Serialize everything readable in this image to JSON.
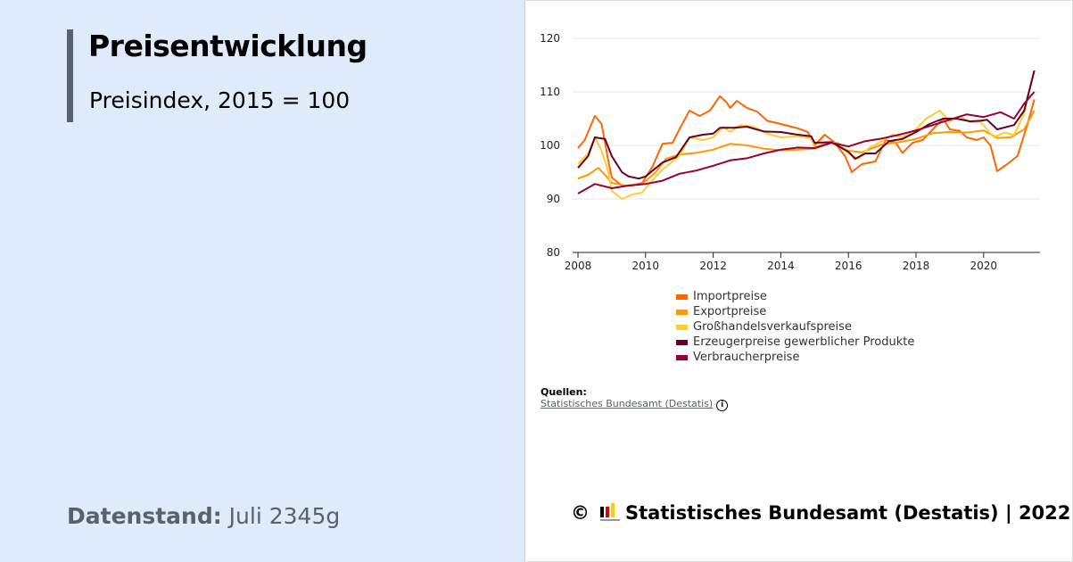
{
  "header": {
    "title": "Preisentwicklung",
    "subtitle": "Preisindex, 2015 = 100"
  },
  "datenstand": {
    "label": "Datenstand:",
    "value": "Juli 2345g"
  },
  "sources": {
    "label": "Quellen:",
    "link": "Statistisches Bundesamt (Destatis)",
    "info_icon": "info-icon"
  },
  "footer": {
    "copyright": "©",
    "text": "Statistisches Bundesamt (Destatis) | 2022",
    "logo_colors": [
      "#000000",
      "#dd0000",
      "#ffcc00"
    ]
  },
  "chart_data": {
    "type": "line",
    "xlim": [
      2008,
      2021.6
    ],
    "ylim": [
      80,
      120
    ],
    "xticks": [
      "2008",
      "2010",
      "2012",
      "2014",
      "2016",
      "2018",
      "2020"
    ],
    "yticks": [
      "80",
      "90",
      "100",
      "110",
      "120"
    ],
    "grid": true,
    "legend_position": "bottom",
    "series": [
      {
        "name": "Importpreise",
        "color": "#ff6600",
        "points": [
          [
            2008,
            99.5
          ],
          [
            2008.2,
            101
          ],
          [
            2008.5,
            105.5
          ],
          [
            2008.7,
            104
          ],
          [
            2008.9,
            97
          ],
          [
            2009,
            94
          ],
          [
            2009.3,
            92.5
          ],
          [
            2009.6,
            92.5
          ],
          [
            2009.9,
            93
          ],
          [
            2010.2,
            96
          ],
          [
            2010.5,
            100.3
          ],
          [
            2010.8,
            100.5
          ],
          [
            2011,
            103
          ],
          [
            2011.3,
            106.5
          ],
          [
            2011.6,
            105.5
          ],
          [
            2011.9,
            106.5
          ],
          [
            2012.2,
            109.2
          ],
          [
            2012.4,
            108
          ],
          [
            2012.5,
            107
          ],
          [
            2012.7,
            108.3
          ],
          [
            2013,
            107
          ],
          [
            2013.3,
            106.3
          ],
          [
            2013.6,
            104.6
          ],
          [
            2014,
            104
          ],
          [
            2014.5,
            103.2
          ],
          [
            2014.8,
            102.5
          ],
          [
            2015,
            100
          ],
          [
            2015.3,
            102
          ],
          [
            2015.6,
            100.5
          ],
          [
            2015.9,
            98
          ],
          [
            2016.1,
            95
          ],
          [
            2016.4,
            96.5
          ],
          [
            2016.8,
            97
          ],
          [
            2017.1,
            101
          ],
          [
            2017.4,
            100.5
          ],
          [
            2017.6,
            98.6
          ],
          [
            2017.9,
            100.5
          ],
          [
            2018.2,
            101
          ],
          [
            2018.5,
            103
          ],
          [
            2018.8,
            105
          ],
          [
            2019,
            103
          ],
          [
            2019.3,
            102.7
          ],
          [
            2019.5,
            101.5
          ],
          [
            2019.8,
            101
          ],
          [
            2020,
            101.5
          ],
          [
            2020.2,
            100
          ],
          [
            2020.4,
            95.2
          ],
          [
            2020.7,
            96.5
          ],
          [
            2021,
            98
          ],
          [
            2021.3,
            104
          ],
          [
            2021.5,
            108.6
          ]
        ]
      },
      {
        "name": "Exportpreise",
        "color": "#ff9900",
        "points": [
          [
            2008,
            93.8
          ],
          [
            2008.3,
            94.5
          ],
          [
            2008.6,
            95.8
          ],
          [
            2008.8,
            94.5
          ],
          [
            2009,
            93
          ],
          [
            2009.4,
            92.5
          ],
          [
            2009.9,
            92.8
          ],
          [
            2010.3,
            95
          ],
          [
            2010.6,
            97.5
          ],
          [
            2011,
            98.3
          ],
          [
            2011.5,
            98.6
          ],
          [
            2012,
            99.2
          ],
          [
            2012.5,
            100.3
          ],
          [
            2013,
            100
          ],
          [
            2013.5,
            99.4
          ],
          [
            2014,
            99.1
          ],
          [
            2014.5,
            99.2
          ],
          [
            2015,
            99.4
          ],
          [
            2015.5,
            100.5
          ],
          [
            2016,
            99
          ],
          [
            2016.4,
            98.7
          ],
          [
            2017,
            100.2
          ],
          [
            2017.5,
            100.6
          ],
          [
            2018,
            101.2
          ],
          [
            2018.5,
            102.3
          ],
          [
            2019,
            102.5
          ],
          [
            2019.5,
            102.4
          ],
          [
            2020,
            102.8
          ],
          [
            2020.4,
            101.4
          ],
          [
            2020.8,
            101.5
          ],
          [
            2021.2,
            103
          ],
          [
            2021.5,
            106.5
          ]
        ]
      },
      {
        "name": "Großhandelsverkaufspreise",
        "color": "#ffcc33",
        "points": [
          [
            2008,
            96.5
          ],
          [
            2008.3,
            98.5
          ],
          [
            2008.5,
            101.5
          ],
          [
            2008.7,
            99
          ],
          [
            2008.9,
            95
          ],
          [
            2009,
            91.5
          ],
          [
            2009.3,
            90
          ],
          [
            2009.6,
            90.8
          ],
          [
            2009.9,
            91.2
          ],
          [
            2010.2,
            93.5
          ],
          [
            2010.5,
            95.5
          ],
          [
            2011,
            98
          ],
          [
            2011.3,
            101.5
          ],
          [
            2011.7,
            101
          ],
          [
            2012,
            101.5
          ],
          [
            2012.3,
            103.5
          ],
          [
            2012.5,
            102.5
          ],
          [
            2012.8,
            103.8
          ],
          [
            2013.2,
            103.5
          ],
          [
            2013.6,
            102.2
          ],
          [
            2014,
            101.5
          ],
          [
            2014.5,
            101.7
          ],
          [
            2014.9,
            101.4
          ],
          [
            2015,
            99.5
          ],
          [
            2015.3,
            100.5
          ],
          [
            2015.7,
            100.5
          ],
          [
            2016,
            98.5
          ],
          [
            2016.3,
            97.5
          ],
          [
            2016.6,
            99.5
          ],
          [
            2017,
            100.8
          ],
          [
            2017.3,
            102
          ],
          [
            2017.6,
            101.5
          ],
          [
            2018,
            103
          ],
          [
            2018.3,
            105
          ],
          [
            2018.7,
            106.5
          ],
          [
            2019,
            104.5
          ],
          [
            2019.3,
            105.5
          ],
          [
            2019.6,
            104.3
          ],
          [
            2019.9,
            104.5
          ],
          [
            2020.3,
            101.5
          ],
          [
            2020.6,
            102.4
          ],
          [
            2020.9,
            102
          ],
          [
            2021.2,
            106
          ],
          [
            2021.5,
            114
          ]
        ]
      },
      {
        "name": "Erzeugerpreise gewerblicher Produkte",
        "color": "#660022",
        "points": [
          [
            2008,
            95.8
          ],
          [
            2008.3,
            98
          ],
          [
            2008.5,
            101.5
          ],
          [
            2008.8,
            101.2
          ],
          [
            2009,
            98
          ],
          [
            2009.3,
            95
          ],
          [
            2009.5,
            94.2
          ],
          [
            2009.8,
            93.8
          ],
          [
            2010,
            94.2
          ],
          [
            2010.5,
            96.8
          ],
          [
            2010.9,
            97.8
          ],
          [
            2011.3,
            101.5
          ],
          [
            2011.7,
            102
          ],
          [
            2012,
            102.2
          ],
          [
            2012.2,
            103.3
          ],
          [
            2012.6,
            103.3
          ],
          [
            2013,
            103.5
          ],
          [
            2013.5,
            102.6
          ],
          [
            2014,
            102.5
          ],
          [
            2014.5,
            102
          ],
          [
            2014.9,
            101.7
          ],
          [
            2015,
            100.5
          ],
          [
            2015.5,
            100.6
          ],
          [
            2016,
            98.8
          ],
          [
            2016.2,
            97.5
          ],
          [
            2016.5,
            98.5
          ],
          [
            2016.8,
            98.5
          ],
          [
            2017.2,
            100.8
          ],
          [
            2017.6,
            101.2
          ],
          [
            2018,
            102.5
          ],
          [
            2018.4,
            104
          ],
          [
            2018.8,
            105
          ],
          [
            2019.2,
            105
          ],
          [
            2019.6,
            104.5
          ],
          [
            2019.9,
            104.6
          ],
          [
            2020.1,
            104.8
          ],
          [
            2020.4,
            103
          ],
          [
            2020.9,
            103.8
          ],
          [
            2021.2,
            106.5
          ],
          [
            2021.5,
            114
          ]
        ]
      },
      {
        "name": "Verbraucherpreise",
        "color": "#990033",
        "points": [
          [
            2008,
            91
          ],
          [
            2008.5,
            92.8
          ],
          [
            2009,
            92
          ],
          [
            2009.5,
            92.5
          ],
          [
            2010,
            92.8
          ],
          [
            2010.5,
            93.4
          ],
          [
            2011,
            94.7
          ],
          [
            2011.5,
            95.3
          ],
          [
            2012,
            96.2
          ],
          [
            2012.5,
            97.2
          ],
          [
            2013,
            97.6
          ],
          [
            2013.5,
            98.5
          ],
          [
            2014,
            99.2
          ],
          [
            2014.5,
            99.6
          ],
          [
            2015,
            99.5
          ],
          [
            2015.5,
            100.5
          ],
          [
            2016,
            99.8
          ],
          [
            2016.5,
            100.8
          ],
          [
            2017,
            101.3
          ],
          [
            2017.5,
            102
          ],
          [
            2018,
            102.8
          ],
          [
            2018.5,
            103.8
          ],
          [
            2019,
            104.8
          ],
          [
            2019.5,
            105.8
          ],
          [
            2020,
            105.3
          ],
          [
            2020.5,
            106.2
          ],
          [
            2020.9,
            105
          ],
          [
            2021.2,
            107.8
          ],
          [
            2021.5,
            110
          ]
        ]
      }
    ]
  }
}
